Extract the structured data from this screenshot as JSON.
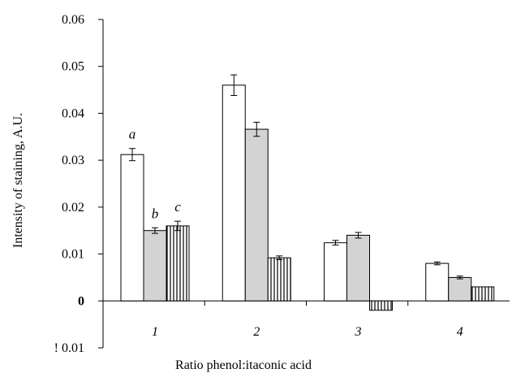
{
  "chart_data": {
    "type": "bar",
    "title": "",
    "xlabel": "Ratio phenol:itaconic acid",
    "ylabel": "Intensity of staining, A.U.",
    "ylim": [
      -0.01,
      0.06
    ],
    "y_ticks": [
      {
        "value": 0.06,
        "label": "0.06",
        "bold": false
      },
      {
        "value": 0.05,
        "label": "0.05",
        "bold": false
      },
      {
        "value": 0.04,
        "label": "0.04",
        "bold": false
      },
      {
        "value": 0.03,
        "label": "0.03",
        "bold": false
      },
      {
        "value": 0.02,
        "label": "0.02",
        "bold": false
      },
      {
        "value": 0.01,
        "label": "0.01",
        "bold": false
      },
      {
        "value": 0,
        "label": "0",
        "bold": true
      },
      {
        "value": -0.01,
        "label": "! 0.01",
        "bold": false
      }
    ],
    "categories": [
      "1",
      "2",
      "3",
      "4"
    ],
    "series": [
      {
        "fill": "#ffffff",
        "pattern": "none",
        "values": [
          0.0312,
          0.046,
          0.0124,
          0.008
        ],
        "errors": [
          0.0013,
          0.0022,
          0.0005,
          0.0003
        ]
      },
      {
        "fill": "#d3d3d3",
        "pattern": "none",
        "values": [
          0.015,
          0.0366,
          0.014,
          0.005
        ],
        "errors": [
          0.0006,
          0.0015,
          0.0006,
          0.0003
        ]
      },
      {
        "fill": "#ffffff",
        "pattern": "vertical-lines",
        "values": [
          0.016,
          0.0092,
          -0.002,
          0.003
        ],
        "errors": [
          0.001,
          0.0004,
          0.0,
          0.0
        ]
      }
    ],
    "annotations": [
      {
        "text": "a",
        "category": 0,
        "series": 0
      },
      {
        "text": "b",
        "category": 0,
        "series": 1
      },
      {
        "text": "c",
        "category": 0,
        "series": 2
      }
    ],
    "grid": false,
    "legend": "none"
  }
}
